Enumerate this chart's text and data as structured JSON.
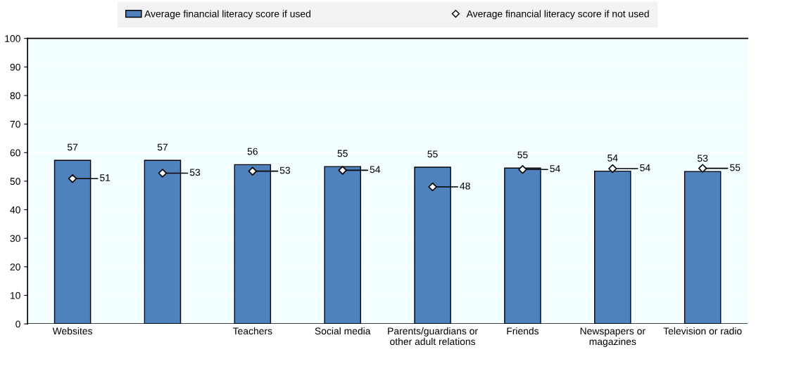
{
  "chart_data": {
    "type": "bar",
    "categories": [
      "Websites",
      null,
      "Teachers",
      "Social media",
      "Parents/guardians or other adult relations",
      "Friends",
      "Newspapers or magazines",
      "Television or radio"
    ],
    "series": [
      {
        "name": "Average financial literacy score if used",
        "color": "#4f81bd",
        "values": [
          57.3,
          57.3,
          55.8,
          55.1,
          54.9,
          54.6,
          53.5,
          53.4
        ],
        "value_labels": [
          "57",
          "57",
          "56",
          "55",
          "55",
          "55",
          "54",
          "53"
        ]
      },
      {
        "name": "Average financial literacy score if not used",
        "type": "scatter",
        "marker": "diamond",
        "color": "#ffffff",
        "values": [
          50.9,
          52.8,
          53.5,
          53.8,
          48.0,
          54.1,
          54.4,
          54.5
        ],
        "value_labels": [
          "51",
          "53",
          "53",
          "54",
          "48",
          "54",
          "54",
          "55"
        ]
      }
    ],
    "ylim": [
      0,
      100
    ],
    "yticks": [
      0,
      10,
      20,
      30,
      40,
      50,
      60,
      70,
      80,
      90,
      100
    ],
    "grid": "y",
    "legend": "top"
  }
}
